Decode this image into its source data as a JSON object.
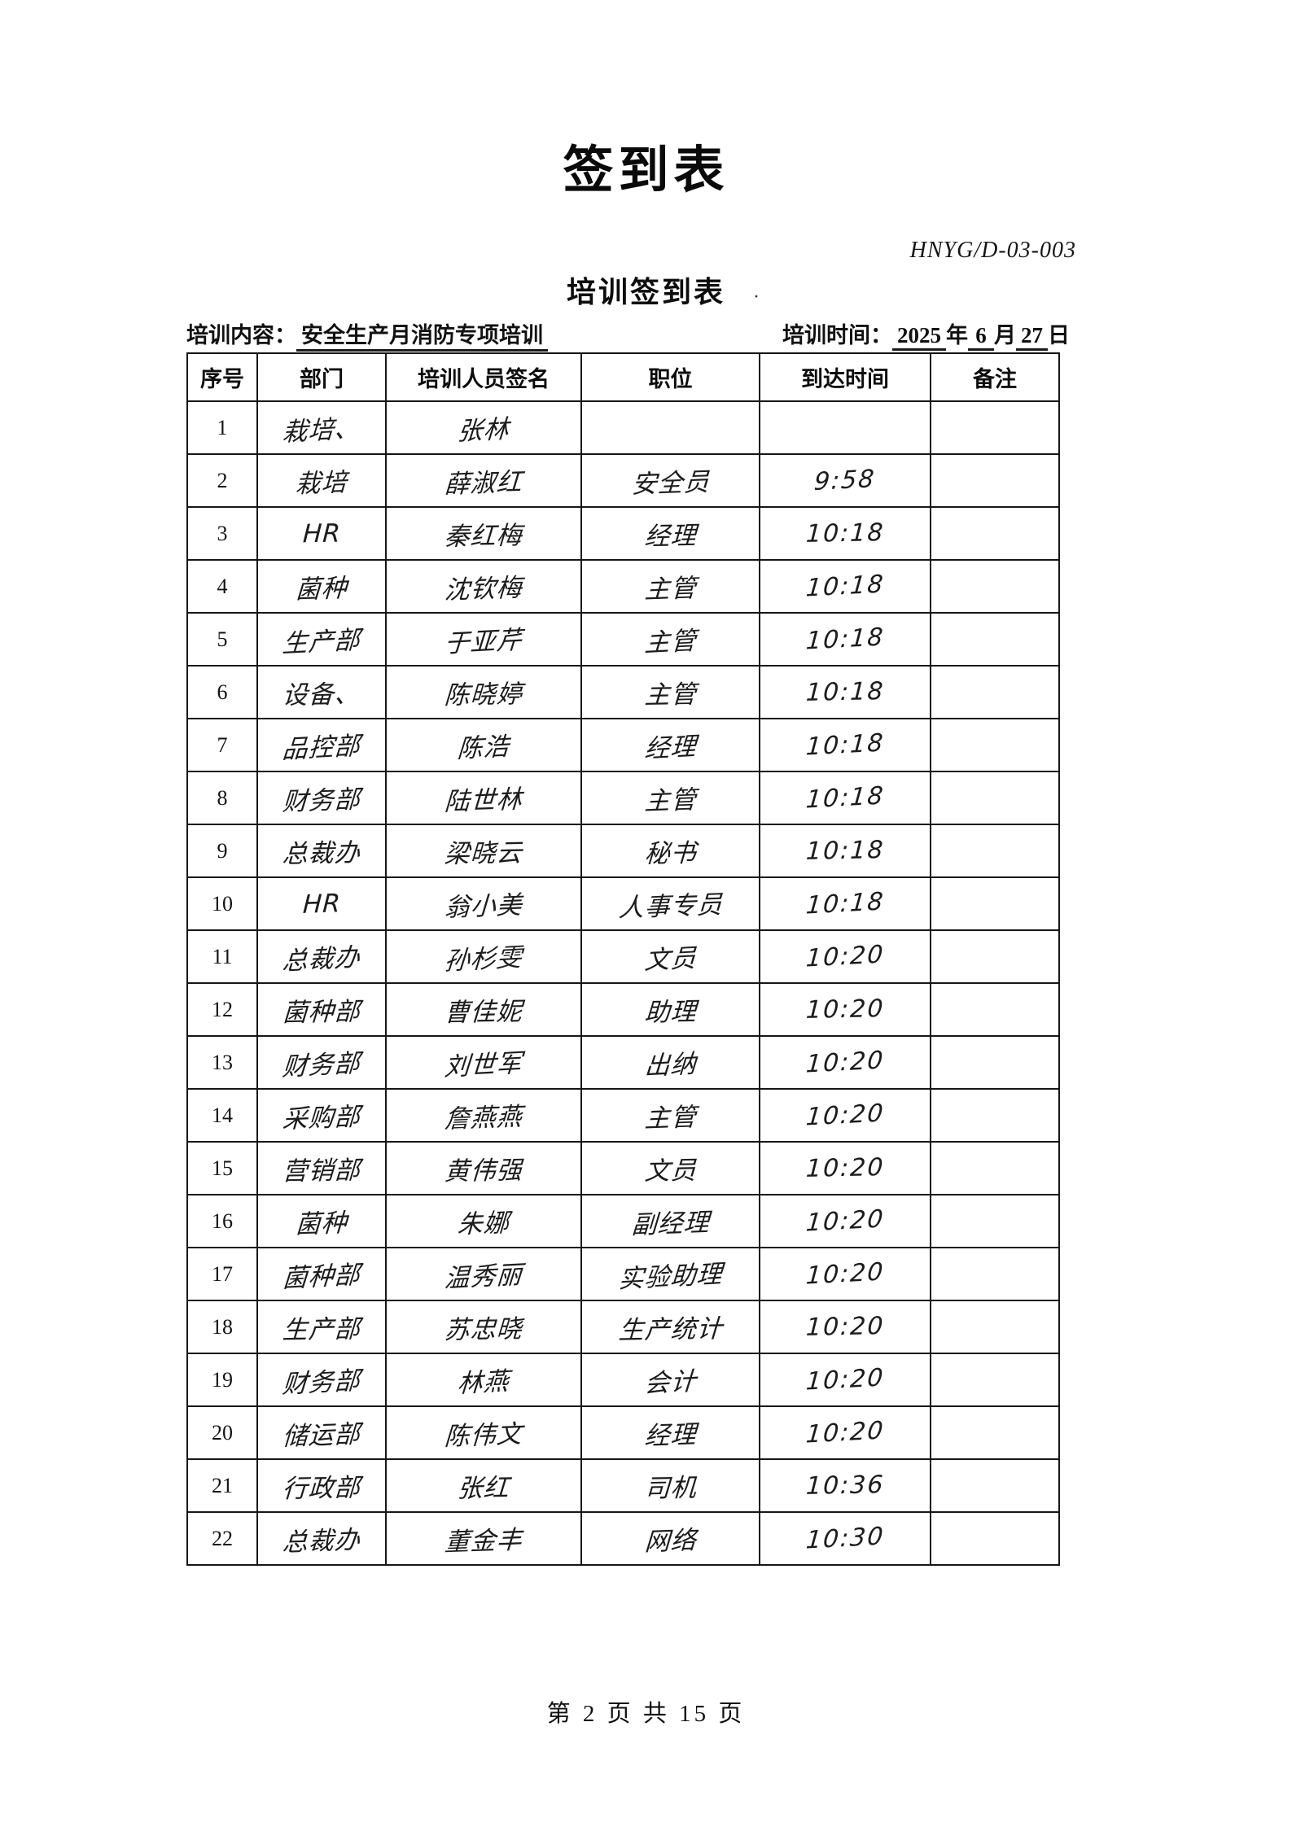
{
  "page": {
    "title": "签到表",
    "doc_code": "HNYG/D-03-003",
    "subtitle": "培训签到表",
    "stray_mark": "·",
    "footer": "第 2 页 共 15 页"
  },
  "info": {
    "content_label": "培训内容：",
    "content_value": "安全生产月消防专项培训",
    "time_label": "培训时间：",
    "time_year": "2025",
    "year_suffix": "年",
    "time_month": "6",
    "month_suffix": "月",
    "time_day": "27",
    "day_suffix": "日"
  },
  "table": {
    "headers": [
      "序号",
      "部门",
      "培训人员签名",
      "职位",
      "到达时间",
      "备注"
    ],
    "rows": [
      {
        "no": "1",
        "dept": "栽培、",
        "signature": "张林",
        "position": "",
        "time": "",
        "note": ""
      },
      {
        "no": "2",
        "dept": "栽培",
        "signature": "薛淑红",
        "position": "安全员",
        "time": "9:58",
        "note": ""
      },
      {
        "no": "3",
        "dept": "HR",
        "signature": "秦红梅",
        "position": "经理",
        "time": "10:18",
        "note": ""
      },
      {
        "no": "4",
        "dept": "菌种",
        "signature": "沈钦梅",
        "position": "主管",
        "time": "10:18",
        "note": ""
      },
      {
        "no": "5",
        "dept": "生产部",
        "signature": "于亚芹",
        "position": "主管",
        "time": "10:18",
        "note": ""
      },
      {
        "no": "6",
        "dept": "设备、",
        "signature": "陈晓婷",
        "position": "主管",
        "time": "10:18",
        "note": ""
      },
      {
        "no": "7",
        "dept": "品控部",
        "signature": "陈浩",
        "position": "经理",
        "time": "10:18",
        "note": ""
      },
      {
        "no": "8",
        "dept": "财务部",
        "signature": "陆世林",
        "position": "主管",
        "time": "10:18",
        "note": ""
      },
      {
        "no": "9",
        "dept": "总裁办",
        "signature": "梁晓云",
        "position": "秘书",
        "time": "10:18",
        "note": ""
      },
      {
        "no": "10",
        "dept": "HR",
        "signature": "翁小美",
        "position": "人事专员",
        "time": "10:18",
        "note": ""
      },
      {
        "no": "11",
        "dept": "总裁办",
        "signature": "孙杉雯",
        "position": "文员",
        "time": "10:20",
        "note": ""
      },
      {
        "no": "12",
        "dept": "菌种部",
        "signature": "曹佳妮",
        "position": "助理",
        "time": "10:20",
        "note": ""
      },
      {
        "no": "13",
        "dept": "财务部",
        "signature": "刘世军",
        "position": "出纳",
        "time": "10:20",
        "note": ""
      },
      {
        "no": "14",
        "dept": "采购部",
        "signature": "詹燕燕",
        "position": "主管",
        "time": "10:20",
        "note": ""
      },
      {
        "no": "15",
        "dept": "营销部",
        "signature": "黄伟强",
        "position": "文员",
        "time": "10:20",
        "note": ""
      },
      {
        "no": "16",
        "dept": "菌种",
        "signature": "朱娜",
        "position": "副经理",
        "time": "10:20",
        "note": ""
      },
      {
        "no": "17",
        "dept": "菌种部",
        "signature": "温秀丽",
        "position": "实验助理",
        "time": "10:20",
        "note": ""
      },
      {
        "no": "18",
        "dept": "生产部",
        "signature": "苏忠晓",
        "position": "生产统计",
        "time": "10:20",
        "note": ""
      },
      {
        "no": "19",
        "dept": "财务部",
        "signature": "林燕",
        "position": "会计",
        "time": "10:20",
        "note": ""
      },
      {
        "no": "20",
        "dept": "储运部",
        "signature": "陈伟文",
        "position": "经理",
        "time": "10:20",
        "note": ""
      },
      {
        "no": "21",
        "dept": "行政部",
        "signature": "张红",
        "position": "司机",
        "time": "10:36",
        "note": ""
      },
      {
        "no": "22",
        "dept": "总裁办",
        "signature": "董金丰",
        "position": "网络",
        "time": "10:30",
        "note": ""
      }
    ]
  }
}
